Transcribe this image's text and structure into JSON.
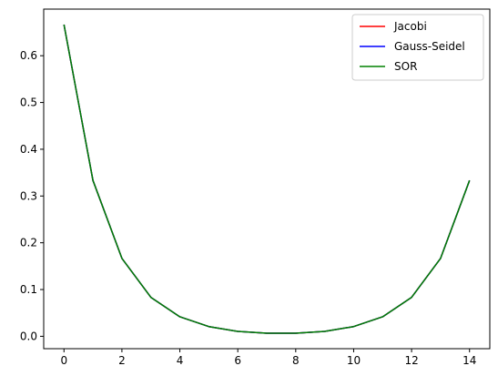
{
  "chart_data": {
    "type": "line",
    "x": [
      0,
      1,
      2,
      3,
      4,
      5,
      6,
      7,
      8,
      9,
      10,
      11,
      12,
      13,
      14
    ],
    "series": [
      {
        "name": "Jacobi",
        "color": "#ff0000",
        "values": [
          0.6667,
          0.3333,
          0.1667,
          0.0833,
          0.0417,
          0.0208,
          0.0104,
          0.0066,
          0.0066,
          0.0104,
          0.0208,
          0.0417,
          0.0833,
          0.1667,
          0.3333
        ]
      },
      {
        "name": "Gauss-Seidel",
        "color": "#0000ff",
        "values": [
          0.6667,
          0.3333,
          0.1667,
          0.0833,
          0.0417,
          0.0208,
          0.0104,
          0.0066,
          0.0066,
          0.0104,
          0.0208,
          0.0417,
          0.0833,
          0.1667,
          0.3333
        ]
      },
      {
        "name": "SOR",
        "color": "#008000",
        "values": [
          0.6667,
          0.3333,
          0.1667,
          0.0833,
          0.0417,
          0.0208,
          0.0104,
          0.0066,
          0.0066,
          0.0104,
          0.0208,
          0.0417,
          0.0833,
          0.1667,
          0.3333
        ]
      }
    ],
    "xlim": [
      -0.7,
      14.7
    ],
    "ylim": [
      -0.0265,
      0.6997
    ],
    "xticks": [
      0,
      2,
      4,
      6,
      8,
      10,
      12,
      14
    ],
    "yticks": [
      0.0,
      0.1,
      0.2,
      0.3,
      0.4,
      0.5,
      0.6
    ],
    "xtick_labels": [
      "0",
      "2",
      "4",
      "6",
      "8",
      "10",
      "12",
      "14"
    ],
    "ytick_labels": [
      "0.0",
      "0.1",
      "0.2",
      "0.3",
      "0.4",
      "0.5",
      "0.6"
    ],
    "title": "",
    "xlabel": "",
    "ylabel": "",
    "grid": false,
    "legend_position": "top-right"
  }
}
